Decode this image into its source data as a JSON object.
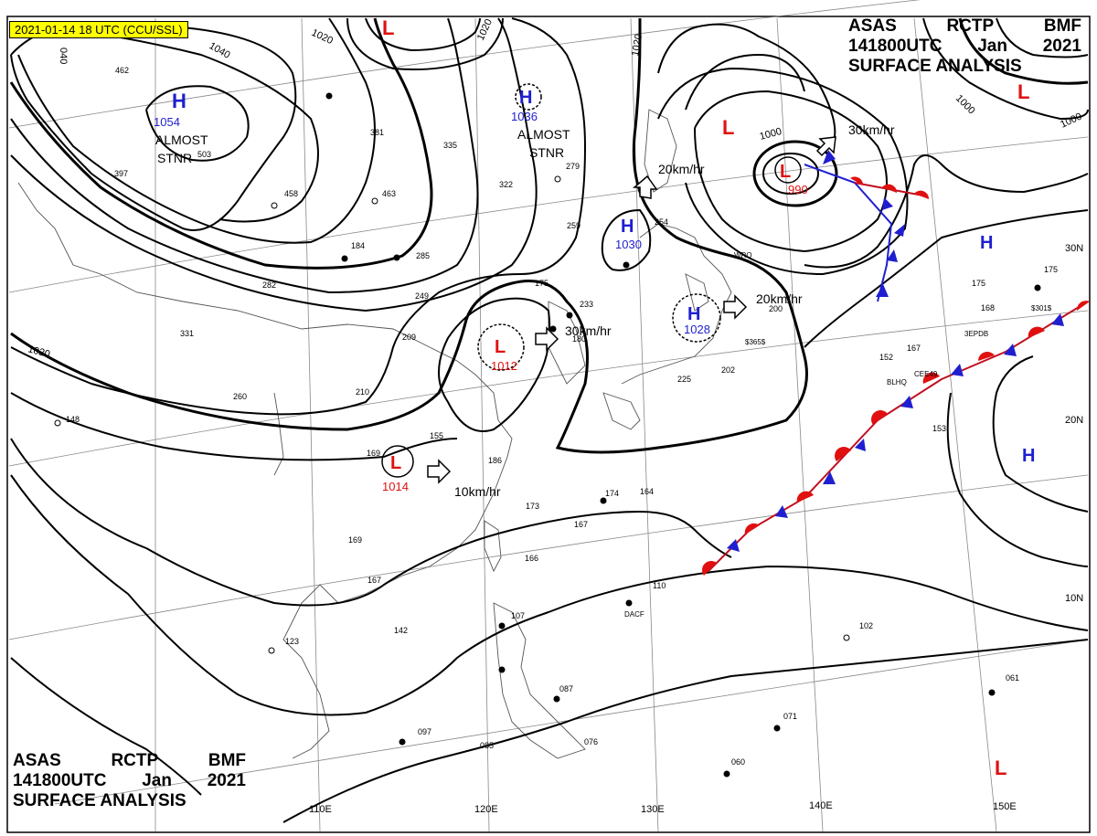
{
  "stamp": "2021-01-14 18 UTC (CCU/SSL)",
  "header": {
    "line1": [
      "ASAS",
      "RCTP",
      "BMF"
    ],
    "line2": [
      "141800UTC",
      "Jan",
      "2021"
    ],
    "line3": "SURFACE ANALYSIS"
  },
  "colors": {
    "high": "#1f1fd0",
    "low": "#e01010",
    "front_warm": "#e01010",
    "front_cold": "#1f1fd0",
    "stamp_bg": "#ffff00"
  },
  "pressure_centers": [
    {
      "type": "H",
      "value": "1054",
      "note": [
        "ALMOST",
        "STNR"
      ]
    },
    {
      "type": "H",
      "value": "1036",
      "note": [
        "ALMOST",
        "STNR"
      ]
    },
    {
      "type": "H",
      "value": "1030"
    },
    {
      "type": "H",
      "value": "1028"
    },
    {
      "type": "L",
      "value": "1012"
    },
    {
      "type": "L",
      "value": "1014"
    },
    {
      "type": "L",
      "value": "990"
    },
    {
      "type": "L",
      "value": ""
    },
    {
      "type": "L",
      "value": ""
    },
    {
      "type": "L",
      "value": ""
    },
    {
      "type": "H",
      "value": ""
    },
    {
      "type": "H",
      "value": ""
    }
  ],
  "motion_labels": [
    "30km/hr",
    "20km/hr",
    "30km/hr",
    "20km/hr",
    "10km/hr"
  ],
  "isobar_labels": [
    "1040",
    "1020",
    "040",
    "1020",
    "1020",
    "1020",
    "1000",
    "1000",
    "1000"
  ],
  "lon_labels": [
    "110E",
    "120E",
    "130E",
    "140E",
    "150E"
  ],
  "lat_labels": [
    "30N",
    "20N",
    "10N"
  ],
  "stations": [
    "462",
    "397",
    "503",
    "458",
    "463",
    "381",
    "335",
    "322",
    "279",
    "259",
    "254",
    "175",
    "184",
    "285",
    "282",
    "249",
    "209",
    "331",
    "260",
    "210",
    "148",
    "180",
    "233",
    "200",
    "155",
    "169",
    "186",
    "173",
    "167",
    "166",
    "164",
    "174",
    "169",
    "167",
    "142",
    "123",
    "110",
    "107",
    "102",
    "097",
    "087",
    "076",
    "085",
    "071",
    "060",
    "061",
    "153",
    "167",
    "152",
    "202",
    "175",
    "168",
    "175",
    "225"
  ],
  "station_codes": [
    "WRO",
    "DACF",
    "3EPDB",
    "$301$",
    "$365$",
    "BLHQ",
    "CEE49"
  ]
}
